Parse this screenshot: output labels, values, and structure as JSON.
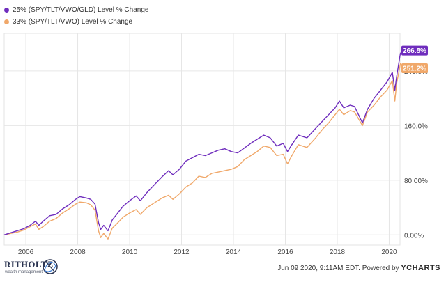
{
  "chart_data": {
    "type": "line",
    "title": "",
    "xlabel": "",
    "ylabel": "",
    "x_ticks": [
      "2006",
      "2008",
      "2010",
      "2012",
      "2014",
      "2016",
      "2018",
      "2020"
    ],
    "y_ticks": [
      "0.00%",
      "80.00%",
      "160.0%",
      "240.0%"
    ],
    "y_tick_values": [
      0,
      80,
      160,
      240
    ],
    "xlim": [
      "2005-03",
      "2020-06"
    ],
    "ylim": [
      -15,
      295
    ],
    "grid": true,
    "legend": "top-left",
    "series": [
      {
        "name": "25% (SPY/TLT/VWO/GLD) Level % Change",
        "color": "#6f2dbd",
        "end_label": "266.8%",
        "points": [
          [
            "2005-03-01",
            0
          ],
          [
            "2005-06-01",
            3
          ],
          [
            "2005-09-01",
            6
          ],
          [
            "2005-12-01",
            9
          ],
          [
            "2006-03-01",
            14
          ],
          [
            "2006-05-15",
            20
          ],
          [
            "2006-07-01",
            14
          ],
          [
            "2006-09-01",
            20
          ],
          [
            "2006-12-01",
            28
          ],
          [
            "2007-03-01",
            30
          ],
          [
            "2007-06-01",
            38
          ],
          [
            "2007-09-01",
            44
          ],
          [
            "2007-12-01",
            52
          ],
          [
            "2008-02-01",
            56
          ],
          [
            "2008-05-01",
            54
          ],
          [
            "2008-07-01",
            52
          ],
          [
            "2008-09-01",
            45
          ],
          [
            "2008-10-20",
            18
          ],
          [
            "2008-11-20",
            8
          ],
          [
            "2009-01-01",
            14
          ],
          [
            "2009-03-01",
            6
          ],
          [
            "2009-05-01",
            22
          ],
          [
            "2009-07-01",
            30
          ],
          [
            "2009-10-01",
            42
          ],
          [
            "2010-01-01",
            50
          ],
          [
            "2010-04-01",
            57
          ],
          [
            "2010-06-01",
            50
          ],
          [
            "2010-09-01",
            62
          ],
          [
            "2010-12-01",
            72
          ],
          [
            "2011-04-01",
            85
          ],
          [
            "2011-07-01",
            94
          ],
          [
            "2011-09-01",
            88
          ],
          [
            "2011-12-01",
            96
          ],
          [
            "2012-03-01",
            108
          ],
          [
            "2012-06-01",
            113
          ],
          [
            "2012-09-01",
            118
          ],
          [
            "2012-12-01",
            116
          ],
          [
            "2013-03-01",
            120
          ],
          [
            "2013-06-01",
            124
          ],
          [
            "2013-09-01",
            126
          ],
          [
            "2013-12-01",
            122
          ],
          [
            "2014-03-01",
            120
          ],
          [
            "2014-06-01",
            127
          ],
          [
            "2014-09-01",
            134
          ],
          [
            "2014-12-01",
            140
          ],
          [
            "2015-03-01",
            146
          ],
          [
            "2015-06-01",
            142
          ],
          [
            "2015-09-01",
            130
          ],
          [
            "2015-12-01",
            134
          ],
          [
            "2016-02-01",
            122
          ],
          [
            "2016-04-01",
            132
          ],
          [
            "2016-07-01",
            146
          ],
          [
            "2016-11-01",
            142
          ],
          [
            "2017-03-01",
            156
          ],
          [
            "2017-06-01",
            166
          ],
          [
            "2017-09-01",
            176
          ],
          [
            "2017-12-01",
            186
          ],
          [
            "2018-02-01",
            196
          ],
          [
            "2018-04-01",
            186
          ],
          [
            "2018-07-01",
            190
          ],
          [
            "2018-09-01",
            188
          ],
          [
            "2018-12-20",
            164
          ],
          [
            "2019-03-01",
            184
          ],
          [
            "2019-06-01",
            200
          ],
          [
            "2019-09-01",
            212
          ],
          [
            "2019-12-01",
            224
          ],
          [
            "2020-02-15",
            238
          ],
          [
            "2020-03-20",
            212
          ],
          [
            "2020-04-15",
            232
          ],
          [
            "2020-06-08",
            266.8
          ]
        ]
      },
      {
        "name": "33% (SPY/TLT/VWO) Level % Change",
        "color": "#f0a86a",
        "end_label": "251.2%",
        "points": [
          [
            "2005-03-01",
            0
          ],
          [
            "2005-06-01",
            2
          ],
          [
            "2005-09-01",
            4
          ],
          [
            "2005-12-01",
            7
          ],
          [
            "2006-03-01",
            12
          ],
          [
            "2006-05-15",
            16
          ],
          [
            "2006-07-01",
            8
          ],
          [
            "2006-09-01",
            12
          ],
          [
            "2006-12-01",
            20
          ],
          [
            "2007-03-01",
            24
          ],
          [
            "2007-06-01",
            32
          ],
          [
            "2007-09-01",
            38
          ],
          [
            "2007-12-01",
            45
          ],
          [
            "2008-02-01",
            48
          ],
          [
            "2008-05-01",
            47
          ],
          [
            "2008-07-01",
            44
          ],
          [
            "2008-09-01",
            36
          ],
          [
            "2008-10-20",
            6
          ],
          [
            "2008-11-20",
            -4
          ],
          [
            "2009-01-01",
            2
          ],
          [
            "2009-03-01",
            -6
          ],
          [
            "2009-05-01",
            10
          ],
          [
            "2009-07-01",
            16
          ],
          [
            "2009-10-01",
            26
          ],
          [
            "2010-01-01",
            32
          ],
          [
            "2010-04-01",
            37
          ],
          [
            "2010-06-01",
            30
          ],
          [
            "2010-09-01",
            40
          ],
          [
            "2010-12-01",
            46
          ],
          [
            "2011-04-01",
            54
          ],
          [
            "2011-07-01",
            58
          ],
          [
            "2011-09-01",
            52
          ],
          [
            "2011-12-01",
            60
          ],
          [
            "2012-03-01",
            70
          ],
          [
            "2012-06-01",
            76
          ],
          [
            "2012-09-01",
            86
          ],
          [
            "2012-12-01",
            84
          ],
          [
            "2013-03-01",
            90
          ],
          [
            "2013-06-01",
            92
          ],
          [
            "2013-09-01",
            94
          ],
          [
            "2013-12-01",
            96
          ],
          [
            "2014-03-01",
            100
          ],
          [
            "2014-06-01",
            110
          ],
          [
            "2014-09-01",
            116
          ],
          [
            "2014-12-01",
            122
          ],
          [
            "2015-03-01",
            130
          ],
          [
            "2015-06-01",
            128
          ],
          [
            "2015-09-01",
            116
          ],
          [
            "2015-12-01",
            118
          ],
          [
            "2016-02-01",
            104
          ],
          [
            "2016-04-01",
            116
          ],
          [
            "2016-07-01",
            132
          ],
          [
            "2016-11-01",
            128
          ],
          [
            "2017-03-01",
            142
          ],
          [
            "2017-06-01",
            154
          ],
          [
            "2017-09-01",
            164
          ],
          [
            "2017-12-01",
            176
          ],
          [
            "2018-02-01",
            184
          ],
          [
            "2018-04-01",
            176
          ],
          [
            "2018-07-01",
            182
          ],
          [
            "2018-09-01",
            180
          ],
          [
            "2018-12-20",
            160
          ],
          [
            "2019-03-01",
            180
          ],
          [
            "2019-06-01",
            190
          ],
          [
            "2019-09-01",
            202
          ],
          [
            "2019-12-01",
            212
          ],
          [
            "2020-02-15",
            226
          ],
          [
            "2020-03-20",
            196
          ],
          [
            "2020-04-15",
            222
          ],
          [
            "2020-06-08",
            251.2
          ]
        ]
      }
    ]
  },
  "footer": {
    "logo_name": "RITHOLTZ",
    "logo_sub": "wealth management",
    "credit_text": "Jun 09 2020, 9:11AM EDT. Powered by ",
    "credit_brand": "YCHARTS"
  }
}
